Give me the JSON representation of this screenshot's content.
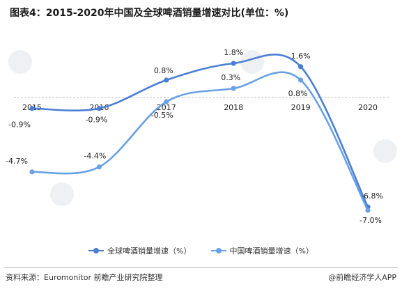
{
  "title": "图表4：2015-2020年中国及全球啤酒销量增速对比(单位：%)",
  "source": "资料来源：Euromonitor 前瞻产业研究院整理",
  "credit": "@前瞻经济学人APP",
  "colors": {
    "global": "#4a7ed6",
    "china": "#6aa0e6",
    "axis": "#bfbfbf"
  },
  "chart_data": {
    "type": "line",
    "categories": [
      "2015",
      "2016",
      "2017",
      "2018",
      "2019",
      "2020"
    ],
    "series": [
      {
        "name": "全球啤酒销量增速（%）",
        "values": [
          -0.9,
          -0.9,
          0.8,
          1.8,
          1.6,
          -6.8
        ],
        "labels": [
          "-0.9%",
          "-0.9%",
          "0.8%",
          "1.8%",
          "1.6%",
          "-6.8%"
        ]
      },
      {
        "name": "中国啤酒销量增速（%）",
        "values": [
          -4.7,
          -4.4,
          -0.5,
          0.3,
          0.8,
          -7.0
        ],
        "labels": [
          "-4.7%",
          "-4.4%",
          "-0.5%",
          "0.3%",
          "0.8%",
          "-7.0%"
        ]
      }
    ],
    "smooth": true,
    "legend_position": "bottom",
    "grid": false,
    "ylim": [
      -7.5,
      2.3
    ]
  }
}
